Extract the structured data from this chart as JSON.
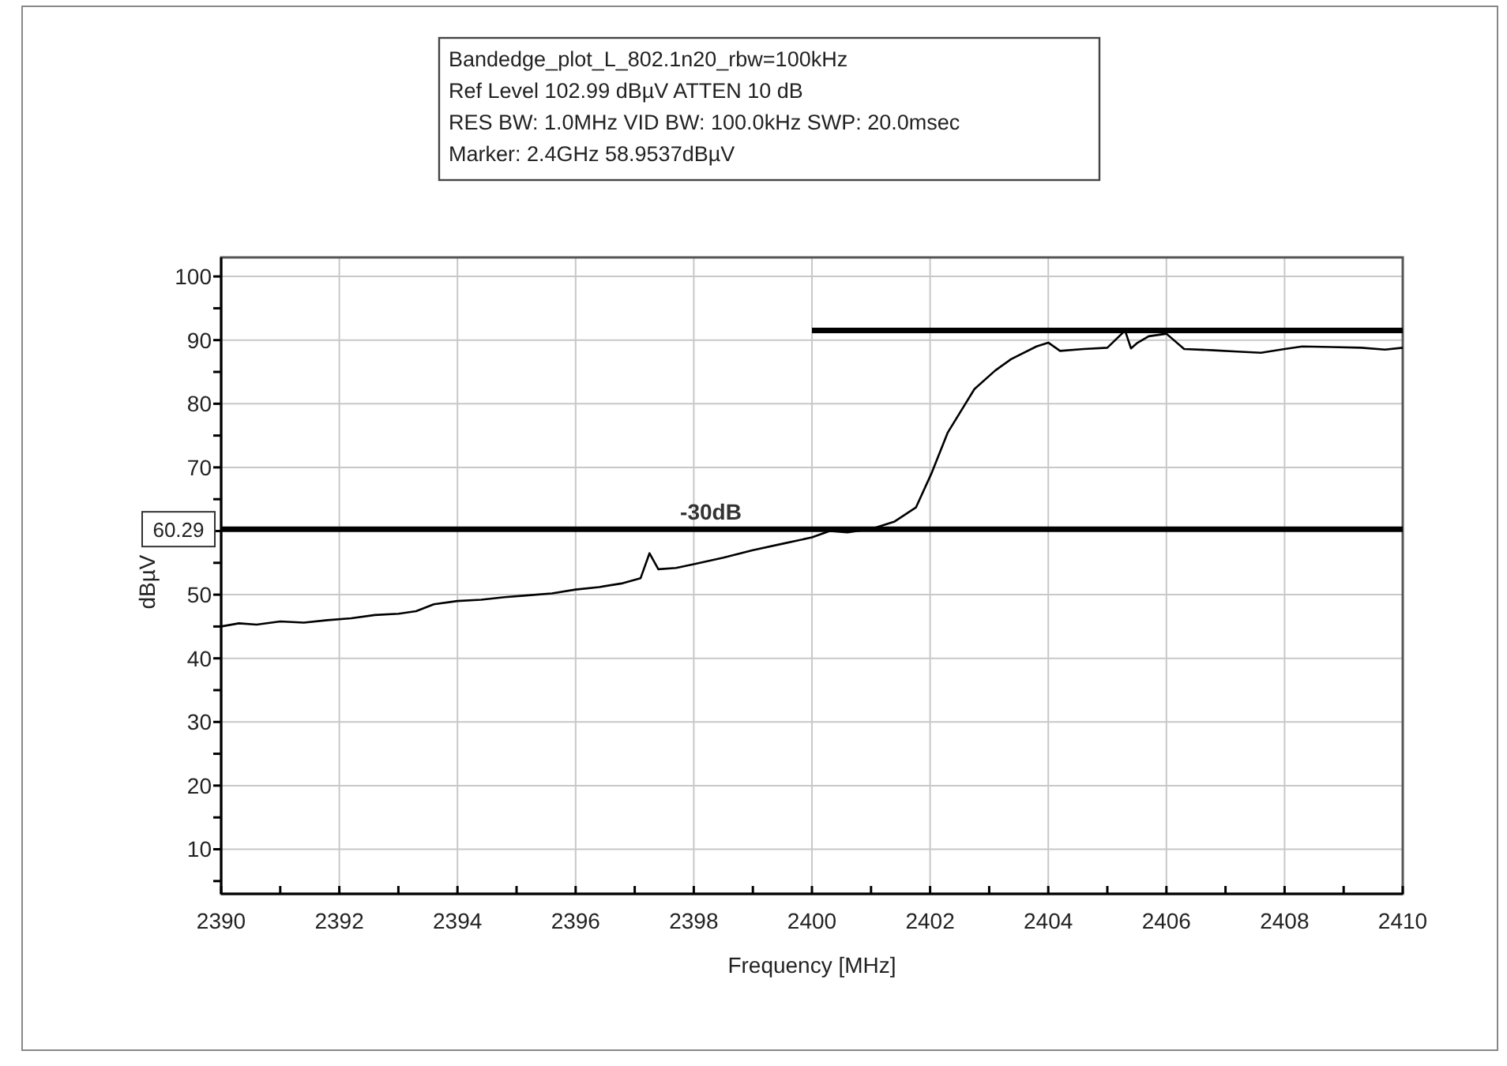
{
  "chart_data": {
    "type": "line",
    "xlabel": "Frequency [MHz]",
    "ylabel": "dBµV",
    "annotations": [
      "Bandedge_plot_L_802.1n20_rbw=100kHz",
      "Ref Level 102.99 dBµV    ATTEN 10 dB",
      "RES BW: 1.0MHz  VID BW: 100.0kHz  SWP: 20.0msec",
      "Marker: 2.4GHz  58.9537dBµV",
      {
        "text": "60.29",
        "x": 2390,
        "y": 60.29
      }
    ],
    "xlim": [
      2390,
      2410
    ],
    "ylim": [
      2.99,
      102.99
    ],
    "xticks": [
      2390,
      {
        "value": 2391,
        "label": null
      },
      2392,
      {
        "value": 2393,
        "label": null
      },
      2394,
      {
        "value": 2395,
        "label": null
      },
      2396,
      {
        "value": 2397,
        "label": null
      },
      2398,
      {
        "value": 2399,
        "label": null
      },
      2400,
      {
        "value": 2401,
        "label": null
      },
      2402,
      {
        "value": 2403,
        "label": null
      },
      2404,
      {
        "value": 2405,
        "label": null
      },
      2406,
      {
        "value": 2407,
        "label": null
      },
      2408,
      {
        "value": 2409,
        "label": null
      },
      2410
    ],
    "yticks": [
      {
        "value": 5,
        "label": null
      },
      10,
      {
        "value": 15,
        "label": null
      },
      20,
      {
        "value": 25,
        "label": null
      },
      30,
      {
        "value": 35,
        "label": null
      },
      40,
      {
        "value": 45,
        "label": null
      },
      50,
      {
        "value": 55,
        "label": null
      },
      {
        "value": 60,
        "label": null
      },
      {
        "value": 65,
        "label": null
      },
      70,
      {
        "value": 75,
        "label": null
      },
      80,
      {
        "value": 85,
        "label": null
      },
      90,
      {
        "value": 95,
        "label": null
      },
      100
    ],
    "grid": true,
    "marker": "none",
    "line_style": "solid",
    "ref_lines": [
      {
        "axis": "y",
        "value": 60.29,
        "label": "-30dB",
        "color": "#000000"
      }
    ],
    "series": [
      {
        "color": "#000000",
        "x": [
          2390,
          2390.3,
          2390.6,
          2391,
          2391.4,
          2391.8,
          2392.2,
          2392.6,
          2393,
          2393.3,
          2393.6,
          2394,
          2394.4,
          2394.8,
          2395.2,
          2395.6,
          2396,
          2396.4,
          2396.8,
          2397.1,
          2397.25,
          2397.4,
          2397.7,
          2398,
          2398.5,
          2399,
          2399.5,
          2400,
          2400.3,
          2400.6,
          2401,
          2401.4,
          2401.76,
          2402.03,
          2402.3,
          2402.75,
          2403.1,
          2403.37,
          2403.8,
          2404,
          2404.2,
          2404.6,
          2405,
          2405.3,
          2405.4,
          2405.5,
          2405.7,
          2406,
          2406.3,
          2406.8,
          2407.2,
          2407.6,
          2408,
          2408.3,
          2408.8,
          2409.3,
          2409.7,
          2410
        ],
        "values": [
          45,
          45.5,
          45.3,
          45.8,
          45.6,
          46,
          46.3,
          46.8,
          47,
          47.4,
          48.5,
          49,
          49.2,
          49.6,
          49.9,
          50.2,
          50.8,
          51.2,
          51.8,
          52.6,
          56.5,
          54,
          54.2,
          54.8,
          55.8,
          57,
          58,
          59,
          60,
          59.8,
          60.3,
          61.5,
          63.7,
          69.2,
          75.5,
          82.3,
          85.2,
          87,
          89,
          89.6,
          88.3,
          88.6,
          88.8,
          91.5,
          88.7,
          89.5,
          90.6,
          91,
          88.6,
          88.4,
          88.2,
          88,
          88.6,
          89,
          88.9,
          88.8,
          88.5,
          88.8
        ]
      },
      {
        "color": "#000000",
        "x": [
          2400,
          2410
        ],
        "values": [
          91.5,
          91.5
        ]
      }
    ]
  }
}
